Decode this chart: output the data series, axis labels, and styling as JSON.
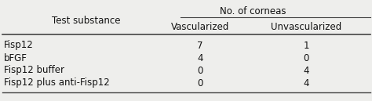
{
  "col_header_top": "No. of corneas",
  "col_header_sub": [
    "Vascularized",
    "Unvascularized"
  ],
  "row_header_label": "Test substance",
  "rows": [
    {
      "substance": "Fisp12",
      "vasc": "7",
      "unvasc": "1"
    },
    {
      "substance": "bFGF",
      "vasc": "4",
      "unvasc": "0"
    },
    {
      "substance": "Fisp12 buffer",
      "vasc": "0",
      "unvasc": "4"
    },
    {
      "substance": "Fisp12 plus anti-Fisp12",
      "vasc": "0",
      "unvasc": "4"
    }
  ],
  "bg_color": "#eeeeec",
  "text_color": "#111111",
  "line_color": "#444444",
  "fontsize": 8.5,
  "figwidth": 4.74,
  "figheight": 1.29,
  "dpi": 100
}
